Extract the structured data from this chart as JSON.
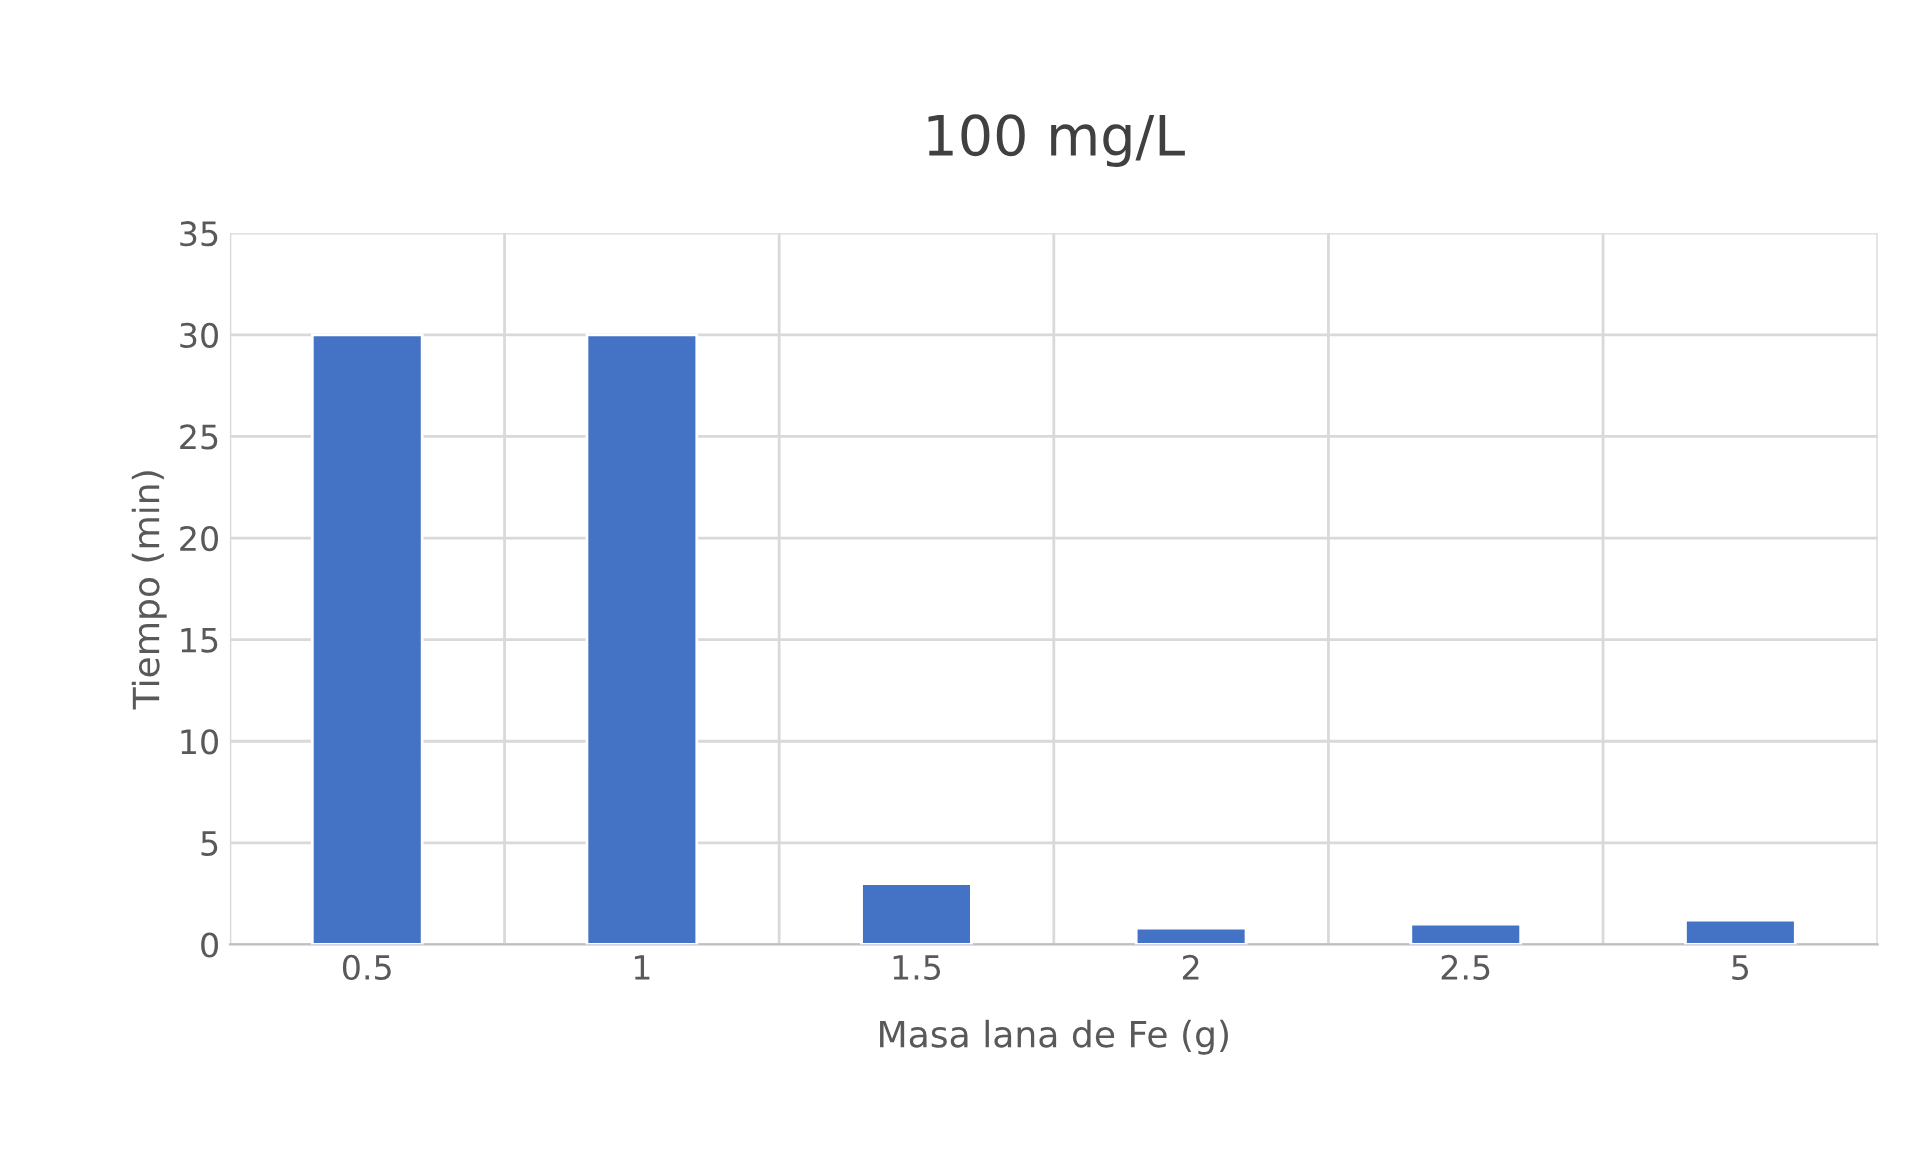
{
  "chart_data": {
    "type": "bar",
    "title": "100 mg/L",
    "xlabel": "Masa lana de Fe (g)",
    "ylabel": "Tiempo (min)",
    "categories": [
      "0.5",
      "1",
      "1.5",
      "2",
      "2.5",
      "5"
    ],
    "series": [
      {
        "color": "#4472c4",
        "values": [
          30,
          30,
          3,
          0.8,
          1,
          1.2
        ]
      }
    ],
    "ylim": [
      0,
      35
    ],
    "yticks": [
      0,
      5,
      10,
      15,
      20,
      25,
      30,
      35
    ],
    "grid": true
  }
}
